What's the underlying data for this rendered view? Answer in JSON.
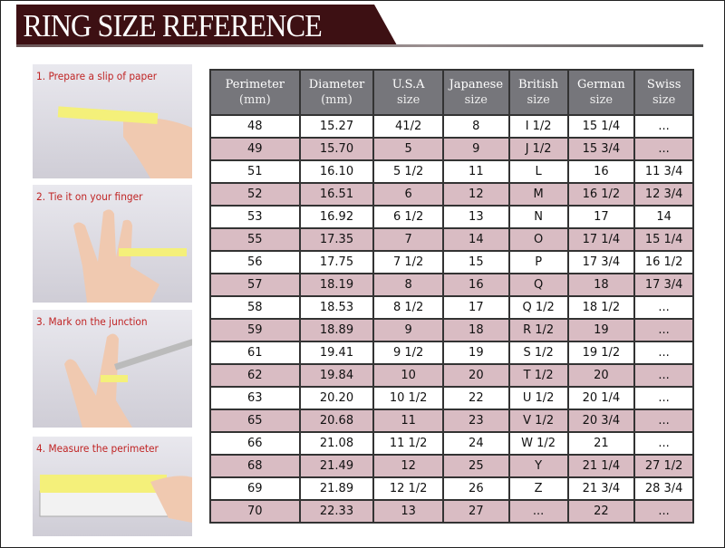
{
  "title": "RING SIZE REFERENCE",
  "steps": [
    "1. Prepare a slip of paper",
    "2. Tie it on your finger",
    "3. Mark on the junction",
    "4. Measure the perimeter"
  ],
  "colors": {
    "banner": "#3d1013",
    "header": "#76767b",
    "alt_row": "#d9bcc3",
    "step_text": "#c02424"
  },
  "headers": [
    [
      "Perimeter",
      "(mm)"
    ],
    [
      "Diameter",
      "(mm)"
    ],
    [
      "U.S.A",
      "size"
    ],
    [
      "Japanese",
      "size"
    ],
    [
      "British",
      "size"
    ],
    [
      "German",
      "size"
    ],
    [
      "Swiss",
      "size"
    ]
  ],
  "rows": [
    [
      "48",
      "15.27",
      "41/2",
      "8",
      "I 1/2",
      "15 1/4",
      "..."
    ],
    [
      "49",
      "15.70",
      "5",
      "9",
      "J 1/2",
      "15 3/4",
      "..."
    ],
    [
      "51",
      "16.10",
      "5 1/2",
      "11",
      "L",
      "16",
      "11 3/4"
    ],
    [
      "52",
      "16.51",
      "6",
      "12",
      "M",
      "16 1/2",
      "12 3/4"
    ],
    [
      "53",
      "16.92",
      "6 1/2",
      "13",
      "N",
      "17",
      "14"
    ],
    [
      "55",
      "17.35",
      "7",
      "14",
      "O",
      "17 1/4",
      "15 1/4"
    ],
    [
      "56",
      "17.75",
      "7 1/2",
      "15",
      "P",
      "17 3/4",
      "16 1/2"
    ],
    [
      "57",
      "18.19",
      "8",
      "16",
      "Q",
      "18",
      "17 3/4"
    ],
    [
      "58",
      "18.53",
      "8 1/2",
      "17",
      "Q  1/2",
      "18 1/2",
      "..."
    ],
    [
      "59",
      "18.89",
      "9",
      "18",
      "R 1/2",
      "19",
      "..."
    ],
    [
      "61",
      "19.41",
      "9 1/2",
      "19",
      "S 1/2",
      "19 1/2",
      "..."
    ],
    [
      "62",
      "19.84",
      "10",
      "20",
      "T 1/2",
      "20",
      "..."
    ],
    [
      "63",
      "20.20",
      "10 1/2",
      "22",
      "U 1/2",
      "20 1/4",
      "..."
    ],
    [
      "65",
      "20.68",
      "11",
      "23",
      "V 1/2",
      "20 3/4",
      "..."
    ],
    [
      "66",
      "21.08",
      "11 1/2",
      "24",
      "W 1/2",
      "21",
      "..."
    ],
    [
      "68",
      "21.49",
      "12",
      "25",
      "Y",
      "21 1/4",
      "27 1/2"
    ],
    [
      "69",
      "21.89",
      "12 1/2",
      "26",
      "Z",
      "21 3/4",
      "28 3/4"
    ],
    [
      "70",
      "22.33",
      "13",
      "27",
      "...",
      "22",
      "..."
    ]
  ]
}
